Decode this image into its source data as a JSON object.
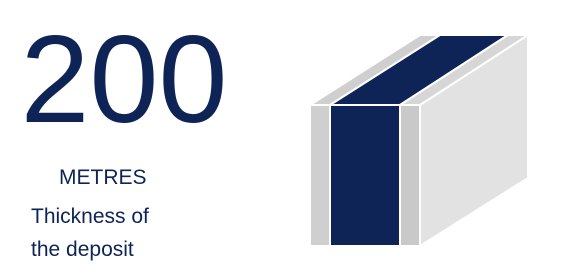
{
  "figure": {
    "value": 200,
    "unit": "METRES",
    "caption": [
      "Thickness of",
      "the deposit"
    ]
  }
}
